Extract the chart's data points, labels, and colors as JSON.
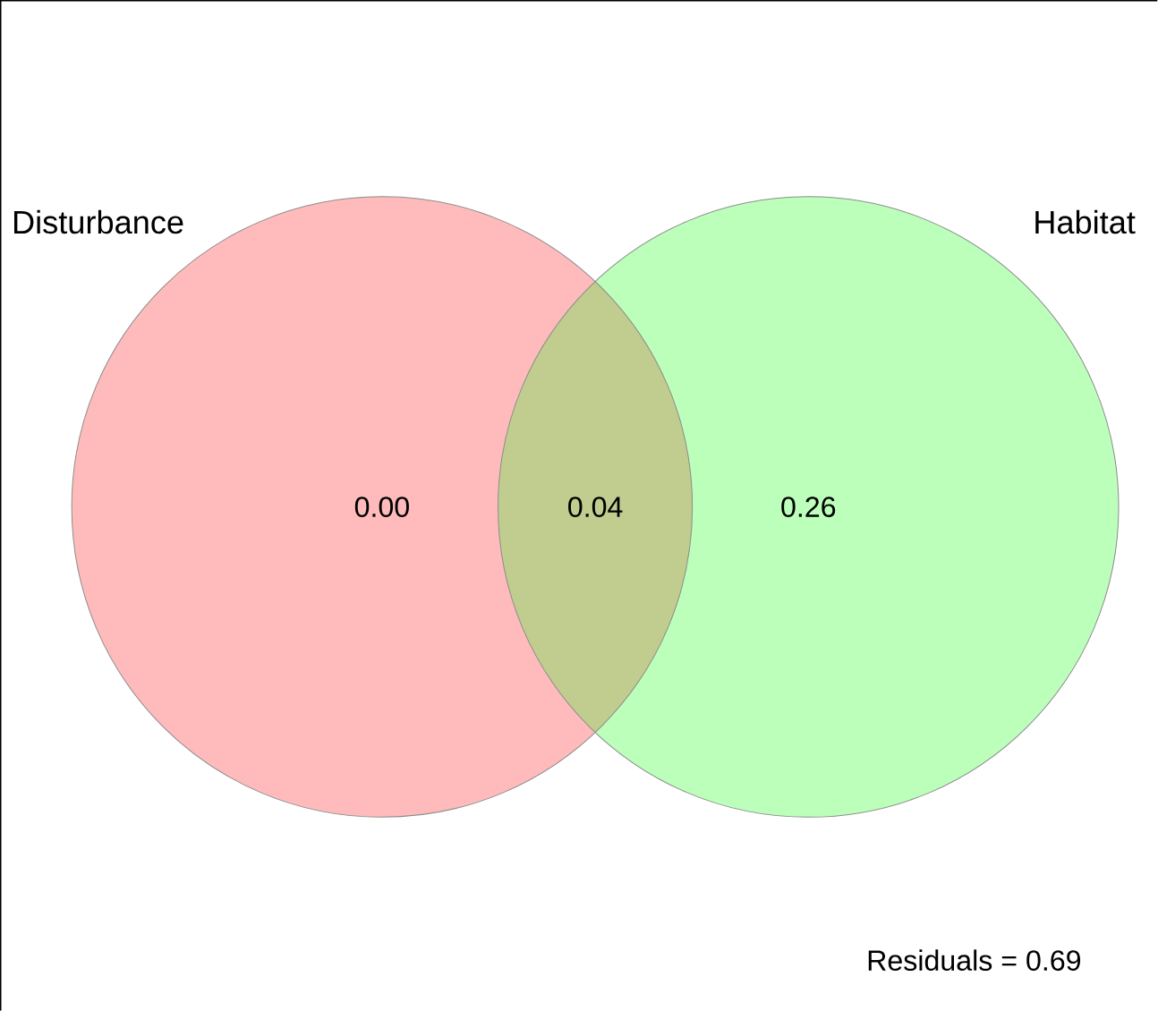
{
  "chart_data": {
    "type": "other",
    "categories": [
      "Disturbance",
      null,
      "Habitat"
    ],
    "values": [
      0.0,
      0.04,
      0.26
    ],
    "data_labels": true,
    "value_labels": [
      "0.00",
      "0.04",
      "0.26"
    ],
    "colors": [
      "#ffbbbb",
      "#c1cc8f",
      "#bbffbb"
    ],
    "annotations": [
      "Residuals = 0.69"
    ]
  }
}
